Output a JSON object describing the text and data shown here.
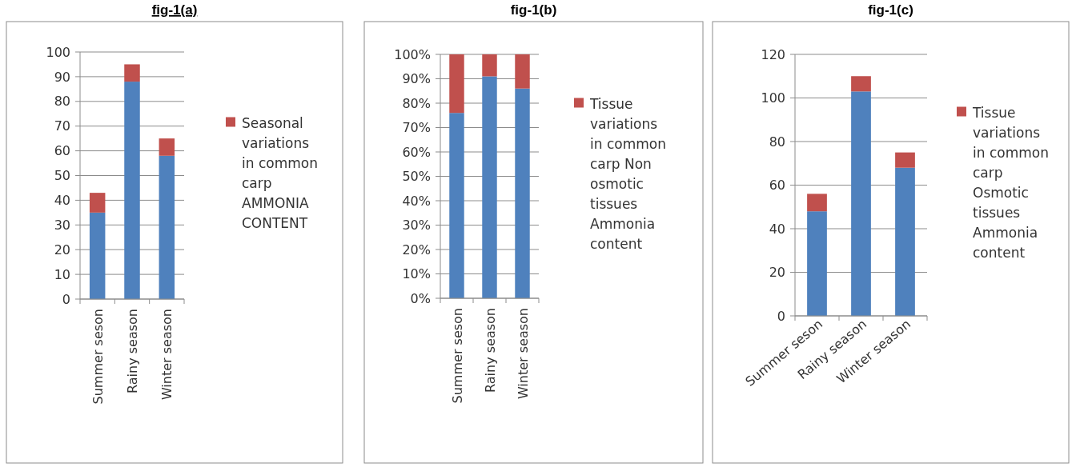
{
  "chart_data": [
    {
      "type": "bar",
      "title": "fig-1(a)",
      "stacked": true,
      "categories": [
        "Summer seson",
        "Rainy season",
        "Winter season"
      ],
      "series": [
        {
          "color": "#4f81bd",
          "values": [
            35,
            88,
            58
          ]
        },
        {
          "name": "Seasonal variations in common carp AMMONIA CONTENT",
          "color": "#c0504d",
          "values": [
            8,
            7,
            7
          ]
        }
      ],
      "ylim": [
        0,
        100
      ],
      "yticks": [
        0,
        10,
        20,
        30,
        40,
        50,
        60,
        70,
        80,
        90,
        100
      ],
      "grid": "y",
      "legend": "right"
    },
    {
      "type": "bar",
      "title": "fig-1(b)",
      "stacked": true,
      "categories": [
        "Summer seson",
        "Rainy season",
        "Winter season"
      ],
      "series": [
        {
          "color": "#4f81bd",
          "values": [
            76,
            91,
            86
          ]
        },
        {
          "name": "Tissue variations in common carp Non osmotic tissues Ammonia content",
          "color": "#c0504d",
          "values": [
            24,
            9,
            14
          ]
        }
      ],
      "ylim": [
        0,
        100
      ],
      "yticks": [
        {
          "value": 0,
          "label": "0%"
        },
        {
          "value": 10,
          "label": "10%"
        },
        {
          "value": 20,
          "label": "20%"
        },
        {
          "value": 30,
          "label": "30%"
        },
        {
          "value": 40,
          "label": "40%"
        },
        {
          "value": 50,
          "label": "50%"
        },
        {
          "value": 60,
          "label": "60%"
        },
        {
          "value": 70,
          "label": "70%"
        },
        {
          "value": 80,
          "label": "80%"
        },
        {
          "value": 90,
          "label": "90%"
        },
        {
          "value": 100,
          "label": "100%"
        }
      ],
      "grid": "y",
      "legend": "right"
    },
    {
      "type": "bar",
      "title": "fig-1(c)",
      "stacked": true,
      "categories": [
        "Summer seson",
        "Rainy season",
        "Winter season"
      ],
      "series": [
        {
          "color": "#4f81bd",
          "values": [
            48,
            103,
            68
          ]
        },
        {
          "name": "Tissue variations in common carp Osmotic tissues Ammonia content",
          "color": "#c0504d",
          "values": [
            8,
            7,
            7
          ]
        }
      ],
      "ylim": [
        0,
        120
      ],
      "yticks": [
        0,
        20,
        40,
        60,
        80,
        100,
        120
      ],
      "grid": "y",
      "legend": "right"
    }
  ]
}
